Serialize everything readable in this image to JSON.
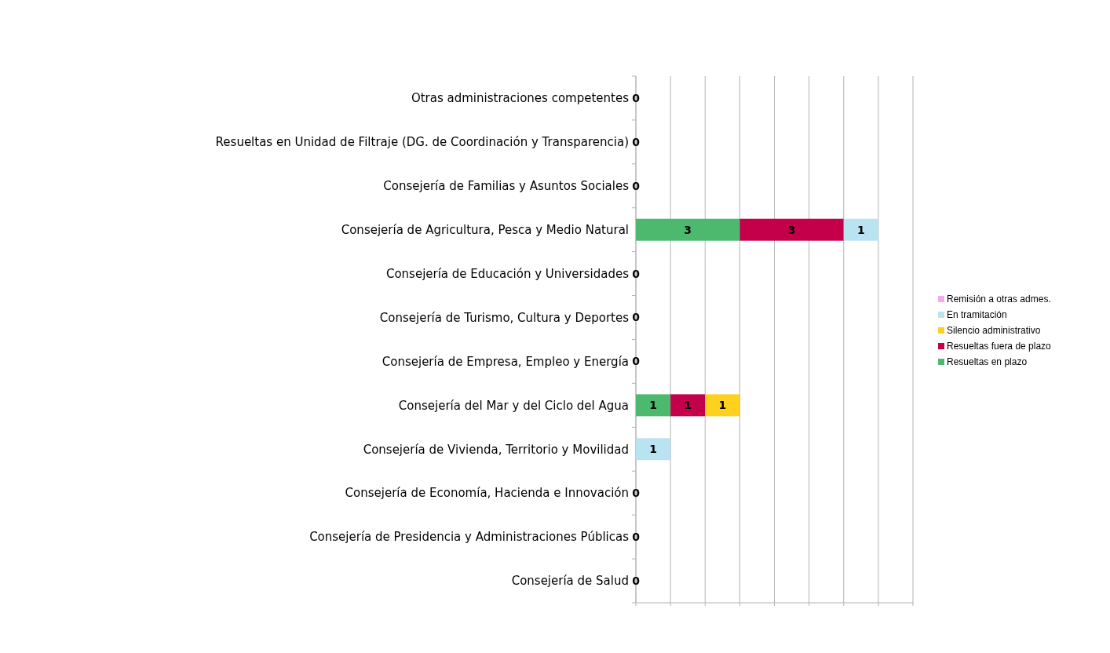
{
  "chart_data": {
    "type": "bar",
    "orientation": "horizontal",
    "stacked": true,
    "categories": [
      "Otras administraciones competentes",
      "Resueltas en Unidad de Filtraje (DG. de  Coordinación y Transparencia)",
      "Consejería de Familias y Asuntos Sociales",
      "Consejería de Agricultura, Pesca y  Medio Natural",
      "Consejería de Educación y Universidades",
      "Consejería de Turismo, Cultura y Deportes",
      "Consejería de Empresa, Empleo y Energía",
      "Consejería del Mar y del Ciclo del Agua",
      "Consejería de Vivienda, Territorio y Movilidad",
      "Consejería de Economía, Hacienda e Innovación",
      "Consejería de Presidencia y Administraciones Públicas",
      "Consejería de Salud"
    ],
    "series": [
      {
        "name": "Resueltas en plazo",
        "color": "#4cb96e",
        "values": [
          0,
          0,
          0,
          3,
          0,
          0,
          0,
          1,
          0,
          0,
          0,
          0
        ],
        "value_labels": [
          "0",
          "0",
          "0",
          "3",
          "0",
          "0",
          "0",
          "1",
          null,
          "0",
          "0",
          "0"
        ]
      },
      {
        "name": "Resueltas fuera de plazo",
        "color": "#c4004a",
        "values": [
          0,
          0,
          0,
          3,
          0,
          0,
          0,
          1,
          0,
          0,
          0,
          0
        ],
        "value_labels": [
          null,
          null,
          null,
          "3",
          null,
          null,
          null,
          "1",
          null,
          null,
          null,
          null
        ]
      },
      {
        "name": "Silencio administrativo",
        "color": "#fdd11e",
        "values": [
          0,
          0,
          0,
          0,
          0,
          0,
          0,
          1,
          0,
          0,
          0,
          0
        ],
        "value_labels": [
          null,
          null,
          null,
          null,
          null,
          null,
          null,
          "1",
          null,
          null,
          null,
          null
        ]
      },
      {
        "name": "En tramitación",
        "color": "#b9e3f1",
        "values": [
          0,
          0,
          0,
          1,
          0,
          0,
          0,
          0,
          1,
          0,
          0,
          0
        ],
        "value_labels": [
          null,
          null,
          null,
          "1",
          null,
          null,
          null,
          null,
          "1",
          null,
          null,
          null
        ]
      },
      {
        "name": "Remisión a otras admes.",
        "color": "#f5a8ec",
        "values": [
          0,
          0,
          0,
          0,
          0,
          0,
          0,
          0,
          0,
          0,
          0,
          0
        ],
        "value_labels": [
          null,
          null,
          null,
          null,
          null,
          null,
          null,
          null,
          null,
          null,
          null,
          null
        ]
      }
    ],
    "xlim": [
      0,
      8
    ],
    "xticks": [
      {
        "value": 0,
        "label": null
      },
      {
        "value": 1,
        "label": null
      },
      {
        "value": 2,
        "label": null
      },
      {
        "value": 3,
        "label": null
      },
      {
        "value": 4,
        "label": null
      },
      {
        "value": 5,
        "label": null
      },
      {
        "value": 6,
        "label": null
      },
      {
        "value": 7,
        "label": null
      },
      {
        "value": 8,
        "label": null
      }
    ],
    "tick_labels": "y",
    "grid": "x",
    "legend": "right"
  }
}
